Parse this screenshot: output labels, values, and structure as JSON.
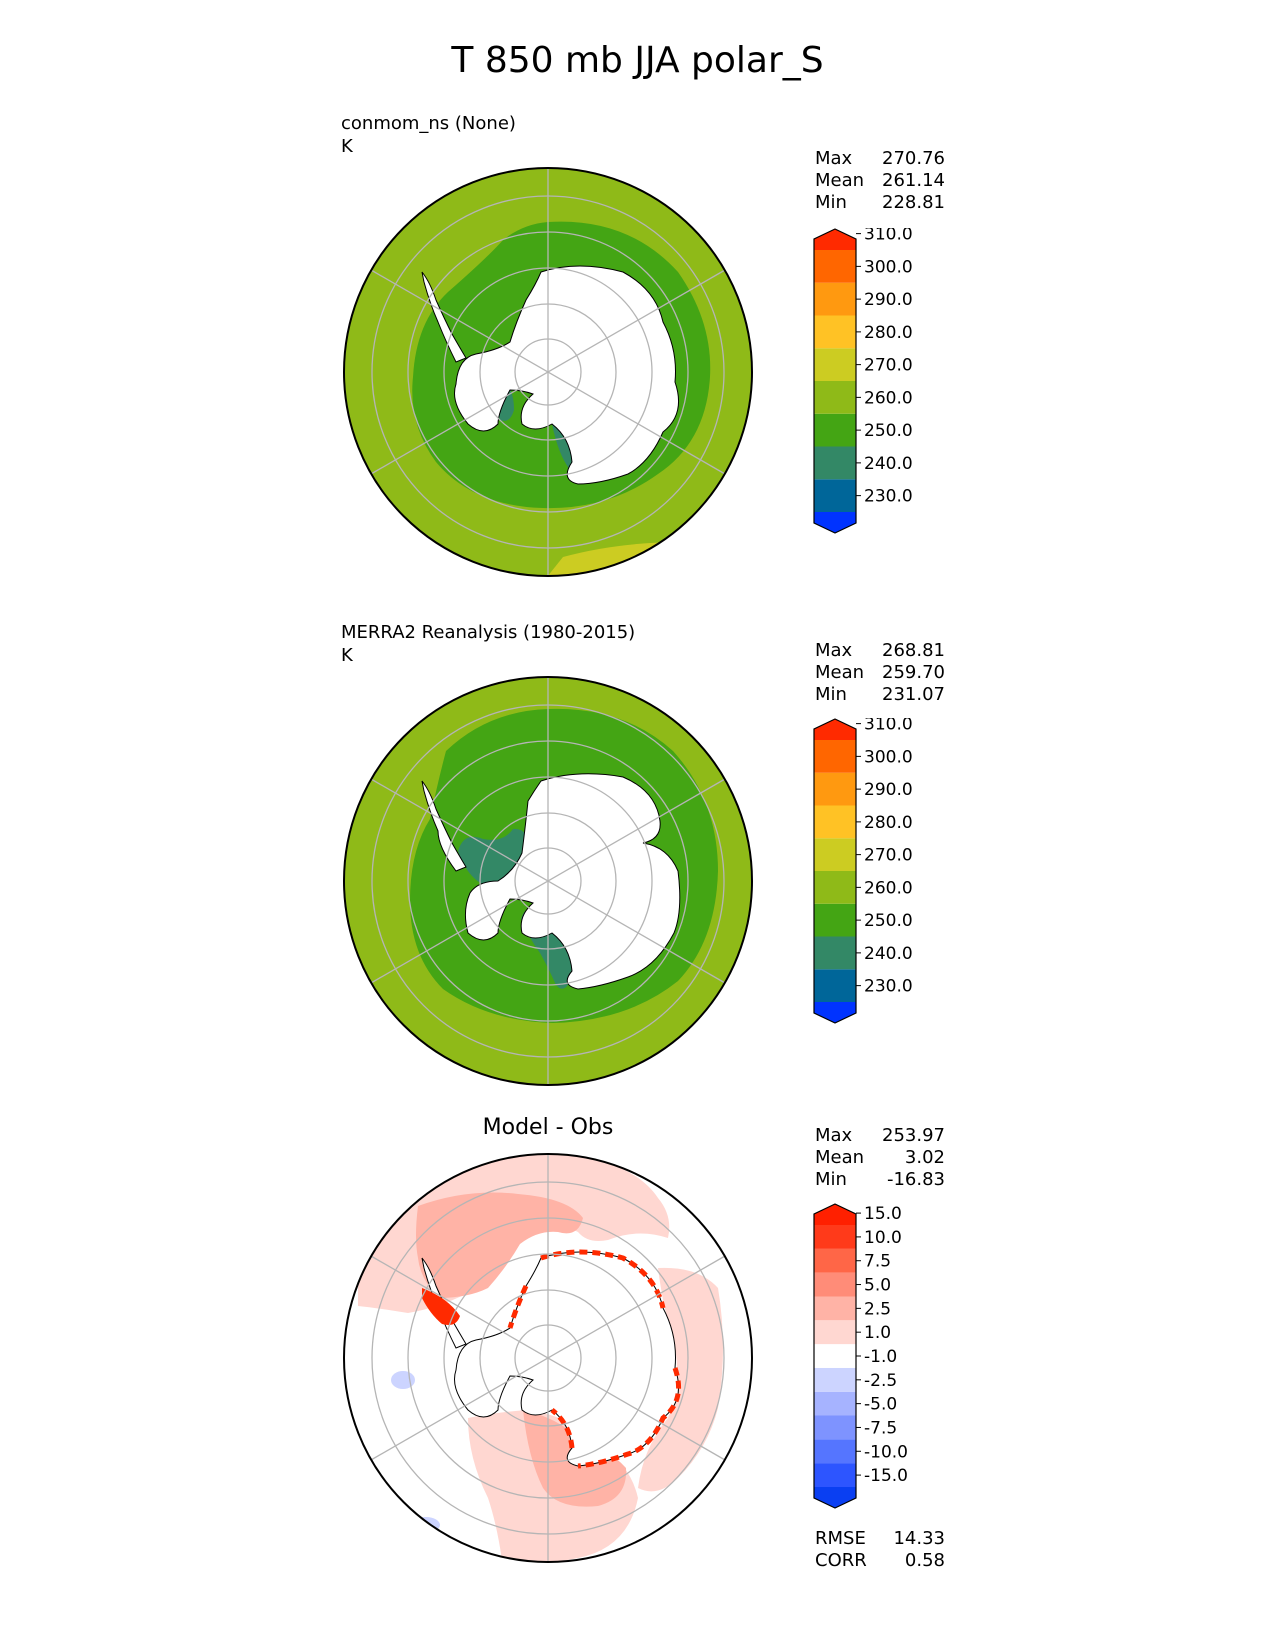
{
  "title": "T 850 mb JJA polar_S",
  "colors": {
    "temp_levels": [
      "#0033ff",
      "#006699",
      "#338866",
      "#44a514",
      "#8fba18",
      "#cccc22",
      "#ffc225",
      "#ff9910",
      "#ff6600",
      "#ff2a00"
    ],
    "diff_levels": [
      "#0a3ff2",
      "#2d55ff",
      "#5575ff",
      "#7e93ff",
      "#a6b3ff",
      "#ccd4ff",
      "#ffffff",
      "#ffd7d1",
      "#ffb3a6",
      "#ff8c78",
      "#ff6647",
      "#ff3a1a",
      "#ff2000"
    ],
    "land": "#ffffff",
    "grid": "#b5b5b5"
  },
  "panels": [
    {
      "id": "model",
      "title_line1": "conmom_ns (None)",
      "title_line2": "K",
      "stats": [
        {
          "label": "Max",
          "value": "270.76"
        },
        {
          "label": "Mean",
          "value": "261.14"
        },
        {
          "label": "Min",
          "value": "228.81"
        }
      ],
      "colorbar": {
        "ticks": [
          "230.0",
          "240.0",
          "250.0",
          "260.0",
          "270.0",
          "280.0",
          "290.0",
          "300.0",
          "310.0"
        ],
        "extend": "both"
      }
    },
    {
      "id": "obs",
      "title_line1": "MERRA2 Reanalysis (1980-2015)",
      "title_line2": "K",
      "stats": [
        {
          "label": "Max",
          "value": "268.81"
        },
        {
          "label": "Mean",
          "value": "259.70"
        },
        {
          "label": "Min",
          "value": "231.07"
        }
      ],
      "colorbar": {
        "ticks": [
          "230.0",
          "240.0",
          "250.0",
          "260.0",
          "270.0",
          "280.0",
          "290.0",
          "300.0",
          "310.0"
        ],
        "extend": "both"
      }
    },
    {
      "id": "diff",
      "title": "Model - Obs",
      "stats": [
        {
          "label": "Max",
          "value": "253.97"
        },
        {
          "label": "Mean",
          "value": "3.02"
        },
        {
          "label": "Min",
          "value": "-16.83"
        }
      ],
      "colorbar": {
        "ticks": [
          "-15.0",
          "-10.0",
          "-7.5",
          "-5.0",
          "-2.5",
          "-1.0",
          "1.0",
          "2.5",
          "5.0",
          "7.5",
          "10.0",
          "15.0"
        ],
        "extend": "both"
      },
      "metrics": [
        {
          "label": "RMSE",
          "value": "14.33"
        },
        {
          "label": "CORR",
          "value": "0.58"
        }
      ]
    }
  ],
  "chart_data": [
    {
      "type": "heatmap",
      "name": "conmom_ns (None)",
      "projection": "south-polar-stereographic",
      "units": "K",
      "levels": [
        230,
        240,
        250,
        260,
        270,
        280,
        290,
        300,
        310
      ],
      "extend": "both",
      "stats": {
        "max": 270.76,
        "mean": 261.14,
        "min": 228.81
      },
      "regions": [
        {
          "region": "outer ring (to ~50S)",
          "range": [
            260,
            270
          ]
        },
        {
          "region": "ring around Antarctic coast",
          "range": [
            250,
            260
          ]
        },
        {
          "region": "Ross / Weddell ice-shelf pockets",
          "range": [
            240,
            250
          ]
        },
        {
          "region": "small patch at outer edge",
          "range": [
            270,
            280
          ]
        }
      ]
    },
    {
      "type": "heatmap",
      "name": "MERRA2 Reanalysis (1980-2015)",
      "projection": "south-polar-stereographic",
      "units": "K",
      "levels": [
        230,
        240,
        250,
        260,
        270,
        280,
        290,
        300,
        310
      ],
      "extend": "both",
      "stats": {
        "max": 268.81,
        "mean": 259.7,
        "min": 231.07
      },
      "regions": [
        {
          "region": "outer ring",
          "range": [
            260,
            270
          ]
        },
        {
          "region": "broad ring around continent",
          "range": [
            250,
            260
          ]
        },
        {
          "region": "Ross / Weddell ice-shelf regions",
          "range": [
            240,
            250
          ]
        },
        {
          "region": "tiny patch near Antarctic Peninsula",
          "range": [
            230,
            240
          ]
        }
      ]
    },
    {
      "type": "heatmap",
      "name": "Model - Obs",
      "projection": "south-polar-stereographic",
      "units": "K",
      "levels": [
        -15,
        -10,
        -7.5,
        -5,
        -2.5,
        -1,
        1,
        2.5,
        5,
        7.5,
        10,
        15
      ],
      "extend": "both",
      "stats": {
        "max": 253.97,
        "mean": 3.02,
        "min": -16.83
      },
      "metrics": {
        "rmse": 14.33,
        "corr": 0.58
      },
      "regions": [
        {
          "region": "Southern Ocean lobes",
          "range": [
            1,
            5
          ]
        },
        {
          "region": "Antarctic coastal margin",
          "range": [
            15,
            253.97
          ]
        },
        {
          "region": "isolated ocean patches",
          "range": [
            -2.5,
            -1
          ]
        }
      ]
    }
  ]
}
